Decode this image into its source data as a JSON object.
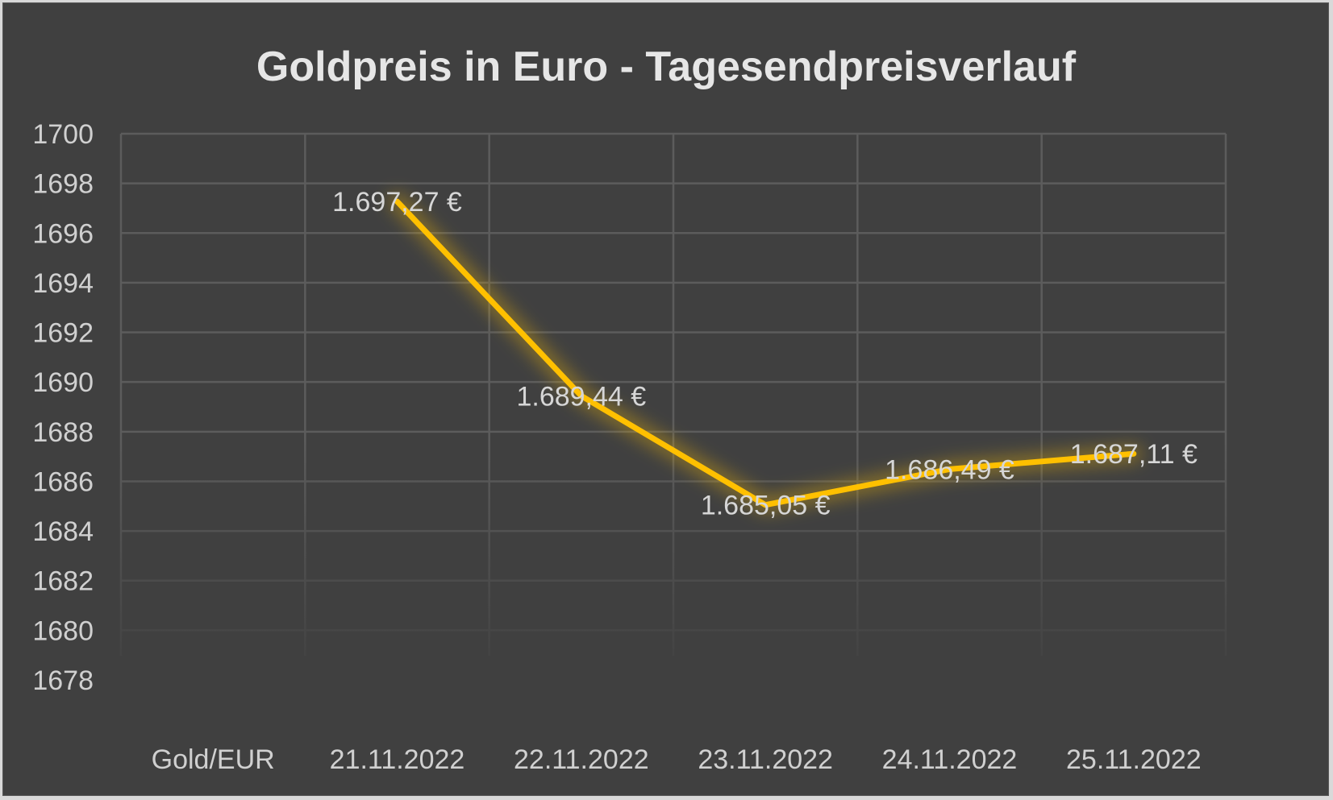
{
  "chart_data": {
    "type": "line",
    "title": "Goldpreis in Euro - Tagesendpreisverlauf",
    "categories": [
      "Gold/EUR",
      "21.11.2022",
      "22.11.2022",
      "23.11.2022",
      "24.11.2022",
      "25.11.2022"
    ],
    "series": [
      {
        "values": [
          null,
          1697.27,
          1689.44,
          1685.05,
          1686.49,
          1687.11
        ],
        "labels": [
          "",
          "1.697,27 €",
          "1.689,44 €",
          "1.685,05 €",
          "1.686,49 €",
          "1.687,11 €"
        ],
        "color": "#FFC000"
      }
    ],
    "yticks": [
      "1700",
      "1698",
      "1696",
      "1694",
      "1692",
      "1690",
      "1688",
      "1686",
      "1684",
      "1682",
      "1680",
      "1678"
    ],
    "ylim": [
      1678,
      1700
    ],
    "grid": true,
    "legend": "none"
  },
  "colors": {
    "background": "#404040",
    "gridline": "#5c5c5c",
    "text": "#d0d0d0",
    "line": "#FFC000"
  }
}
